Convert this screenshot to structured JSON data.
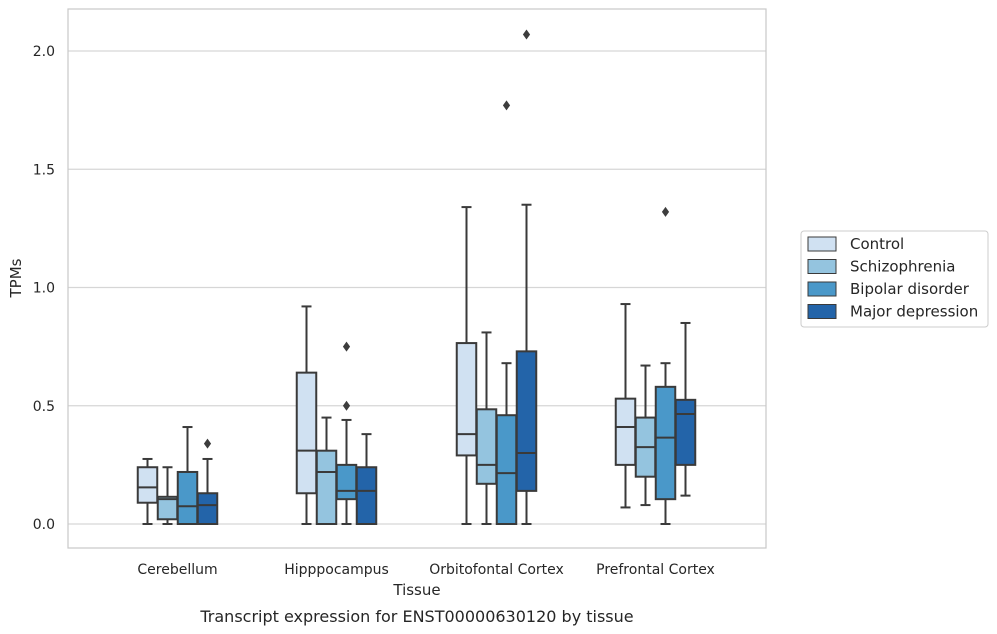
{
  "chart_data": {
    "type": "box",
    "caption": "Transcript expression for ENST00000630120 by tissue",
    "xlabel": "Tissue",
    "ylabel": "TPMs",
    "ylim": [
      -0.1,
      2.18
    ],
    "yticks": [
      0.0,
      0.5,
      1.0,
      1.5,
      2.0
    ],
    "ytick_labels": [
      "0.0",
      "0.5",
      "1.0",
      "1.5",
      "2.0"
    ],
    "grid": "horizontal",
    "legend_position": "right",
    "categories": [
      "Cerebellum",
      "Hipppocampus",
      "Orbitofontal Cortex",
      "Prefrontal Cortex"
    ],
    "series": [
      {
        "name": "Control",
        "color": "#d0e1f2",
        "boxes": [
          {
            "whislo": 0.0,
            "q1": 0.09,
            "med": 0.155,
            "q3": 0.24,
            "whishi": 0.275,
            "fliers": []
          },
          {
            "whislo": 0.0,
            "q1": 0.13,
            "med": 0.31,
            "q3": 0.64,
            "whishi": 0.92,
            "fliers": []
          },
          {
            "whislo": 0.0,
            "q1": 0.29,
            "med": 0.38,
            "q3": 0.765,
            "whishi": 1.34,
            "fliers": []
          },
          {
            "whislo": 0.07,
            "q1": 0.25,
            "med": 0.41,
            "q3": 0.53,
            "whishi": 0.93,
            "fliers": []
          }
        ]
      },
      {
        "name": "Schizophrenia",
        "color": "#94c4df",
        "boxes": [
          {
            "whislo": 0.0,
            "q1": 0.02,
            "med": 0.105,
            "q3": 0.115,
            "whishi": 0.24,
            "fliers": []
          },
          {
            "whislo": 0.0,
            "q1": 0.0,
            "med": 0.22,
            "q3": 0.31,
            "whishi": 0.45,
            "fliers": []
          },
          {
            "whislo": 0.0,
            "q1": 0.17,
            "med": 0.25,
            "q3": 0.485,
            "whishi": 0.81,
            "fliers": []
          },
          {
            "whislo": 0.08,
            "q1": 0.2,
            "med": 0.325,
            "q3": 0.45,
            "whishi": 0.67,
            "fliers": []
          }
        ]
      },
      {
        "name": "Bipolar disorder",
        "color": "#4a98c9",
        "boxes": [
          {
            "whislo": 0.0,
            "q1": 0.0,
            "med": 0.075,
            "q3": 0.22,
            "whishi": 0.41,
            "fliers": []
          },
          {
            "whislo": 0.0,
            "q1": 0.105,
            "med": 0.14,
            "q3": 0.25,
            "whishi": 0.44,
            "fliers": [
              0.5,
              0.75
            ]
          },
          {
            "whislo": 0.0,
            "q1": 0.0,
            "med": 0.215,
            "q3": 0.46,
            "whishi": 0.68,
            "fliers": [
              1.77
            ]
          },
          {
            "whislo": 0.0,
            "q1": 0.105,
            "med": 0.365,
            "q3": 0.58,
            "whishi": 0.68,
            "fliers": [
              1.32
            ]
          }
        ]
      },
      {
        "name": "Major depression",
        "color": "#2364a9",
        "boxes": [
          {
            "whislo": 0.0,
            "q1": 0.0,
            "med": 0.08,
            "q3": 0.13,
            "whishi": 0.275,
            "fliers": [
              0.34
            ]
          },
          {
            "whislo": 0.0,
            "q1": 0.0,
            "med": 0.14,
            "q3": 0.24,
            "whishi": 0.38,
            "fliers": []
          },
          {
            "whislo": 0.0,
            "q1": 0.14,
            "med": 0.3,
            "q3": 0.73,
            "whishi": 1.35,
            "fliers": [
              2.07
            ]
          },
          {
            "whislo": 0.12,
            "q1": 0.25,
            "med": 0.465,
            "q3": 0.525,
            "whishi": 0.85,
            "fliers": []
          }
        ]
      }
    ],
    "colors": {
      "axis": "#c8c8c8",
      "grid": "#d6d6d6",
      "box_edge": "#3a3a3a",
      "text": "#262626"
    }
  }
}
